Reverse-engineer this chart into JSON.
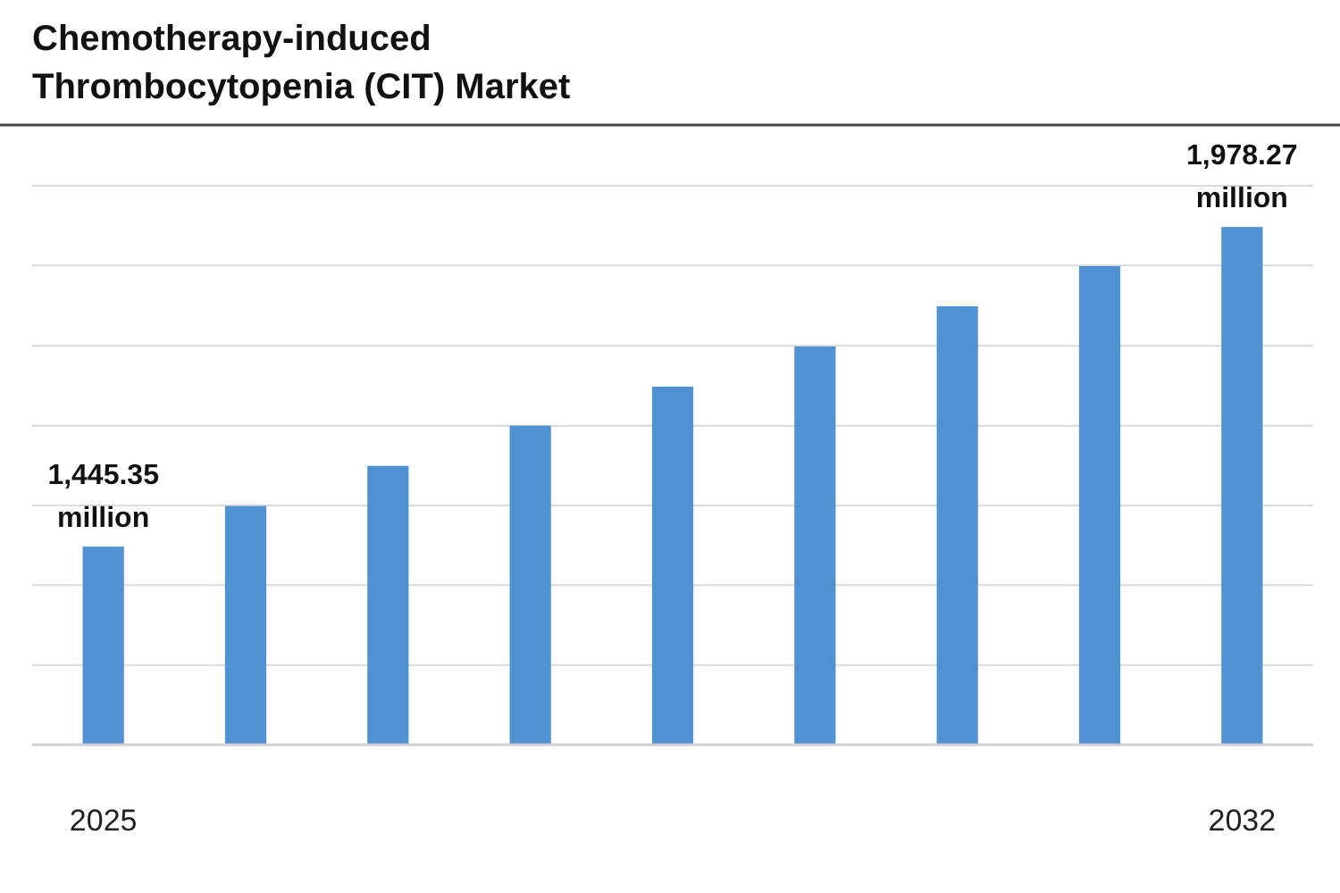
{
  "chart_data": {
    "type": "bar",
    "title": "Chemotherapy-induced Thrombocytopenia (CIT) Market",
    "categories": [
      "2025",
      null,
      null,
      null,
      null,
      null,
      null,
      null,
      "2032"
    ],
    "values": [
      1445.35,
      1513,
      1580,
      1647,
      1712,
      1779,
      1846,
      1913,
      1978.27
    ],
    "color": "#4f91d3",
    "value_labels": [
      "1,445.35 million",
      null,
      null,
      null,
      null,
      null,
      null,
      null,
      "1,978.27 million"
    ],
    "ylim": [
      1115,
      2047
    ],
    "yticks": [
      {
        "value": 1248,
        "label": null
      },
      {
        "value": 1381,
        "label": null
      },
      {
        "value": 1514,
        "label": null
      },
      {
        "value": 1647,
        "label": null
      },
      {
        "value": 1780,
        "label": null
      },
      {
        "value": 1914,
        "label": null
      },
      {
        "value": 2047,
        "label": null
      }
    ],
    "grid": "y",
    "tick_labels": "x"
  }
}
